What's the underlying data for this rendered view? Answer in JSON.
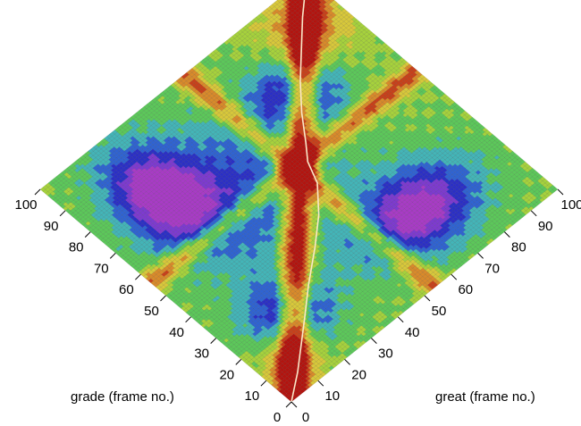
{
  "chart_data": {
    "type": "heatmap",
    "title": "",
    "xlabel": "great (frame no.)",
    "ylabel": "grade (frame no.)",
    "xlim": [
      0,
      100
    ],
    "ylim": [
      0,
      100
    ],
    "x_ticks": [
      0,
      10,
      20,
      30,
      40,
      50,
      60,
      70,
      80,
      90,
      100
    ],
    "y_ticks": [
      0,
      10,
      20,
      30,
      40,
      50,
      60,
      70,
      80,
      90,
      100
    ],
    "grid_resolution": 100,
    "colormap": [
      "#b3140f",
      "#c8401a",
      "#d98a2a",
      "#d8c83a",
      "#a6d23c",
      "#5cc85a",
      "#43b5b8",
      "#2f63d2",
      "#2b2fc6",
      "#7d3ad0",
      "#a83bc6"
    ],
    "surface_description": "dissimilarity matrix: low values (dark red) on the diagonal path and horizontal/vertical bands near frame 55; high values (blue/magenta) in four off-diagonal blocks",
    "path_color": "#fbe7c8",
    "path_points": [
      [
        0,
        0
      ],
      [
        8,
        6
      ],
      [
        15,
        12
      ],
      [
        22,
        18
      ],
      [
        30,
        25
      ],
      [
        40,
        33
      ],
      [
        48,
        40
      ],
      [
        55,
        48
      ],
      [
        58,
        55
      ],
      [
        62,
        60
      ],
      [
        68,
        68
      ],
      [
        75,
        76
      ],
      [
        83,
        84
      ],
      [
        90,
        91
      ],
      [
        100,
        100
      ]
    ]
  }
}
